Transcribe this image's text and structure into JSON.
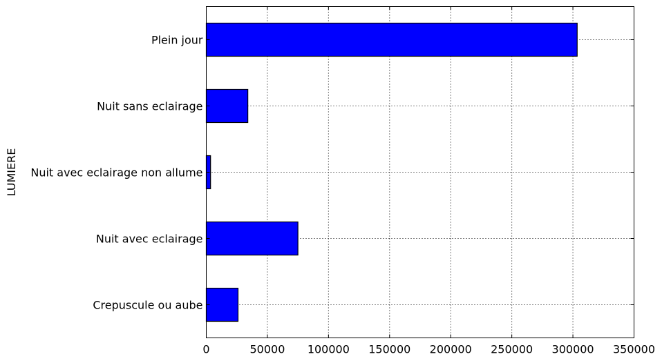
{
  "chart_data": {
    "type": "bar",
    "orientation": "horizontal",
    "title": "",
    "xlabel": "",
    "ylabel": "LUMIERE",
    "categories": [
      "Crepuscule ou aube",
      "Nuit avec eclairage",
      "Nuit avec eclairage non allume",
      "Nuit sans eclairage",
      "Plein jour"
    ],
    "values": [
      26000,
      75000,
      3500,
      34000,
      303500
    ],
    "xlim": [
      0,
      350000
    ],
    "xticks": [
      0,
      50000,
      100000,
      150000,
      200000,
      250000,
      300000,
      350000
    ],
    "xtick_labels": [
      "0",
      "50000",
      "100000",
      "150000",
      "200000",
      "250000",
      "300000",
      "350000"
    ],
    "grid": true,
    "legend": "none",
    "bar_color": "#0000ff",
    "bar_edge_color": "#000000"
  }
}
